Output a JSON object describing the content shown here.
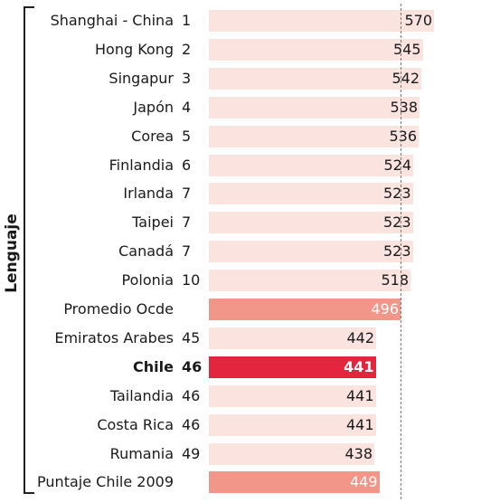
{
  "chart_data": {
    "type": "bar",
    "orientation": "horizontal",
    "title": "",
    "group_label": "Lenguaje",
    "categories": [
      {
        "name": "Shanghai - China",
        "rank": "1",
        "value": 570,
        "style": "light"
      },
      {
        "name": "Hong Kong",
        "rank": "2",
        "value": 545,
        "style": "light"
      },
      {
        "name": "Singapur",
        "rank": "3",
        "value": 542,
        "style": "light"
      },
      {
        "name": "Japón",
        "rank": "4",
        "value": 538,
        "style": "light"
      },
      {
        "name": "Corea",
        "rank": "5",
        "value": 536,
        "style": "light"
      },
      {
        "name": "Finlandia",
        "rank": "6",
        "value": 524,
        "style": "light"
      },
      {
        "name": "Irlanda",
        "rank": "7",
        "value": 523,
        "style": "light"
      },
      {
        "name": "Taipei",
        "rank": "7",
        "value": 523,
        "style": "light"
      },
      {
        "name": "Canadá",
        "rank": "7",
        "value": 523,
        "style": "light"
      },
      {
        "name": "Polonia",
        "rank": "10",
        "value": 518,
        "style": "light"
      },
      {
        "name": "Promedio Ocde",
        "rank": "",
        "value": 496,
        "style": "medium"
      },
      {
        "name": "Emiratos Arabes",
        "rank": "45",
        "value": 442,
        "style": "light"
      },
      {
        "name": "Chile",
        "rank": "46",
        "value": 441,
        "style": "highlight"
      },
      {
        "name": "Tailandia",
        "rank": "46",
        "value": 441,
        "style": "light"
      },
      {
        "name": "Costa Rica",
        "rank": "46",
        "value": 441,
        "style": "light"
      },
      {
        "name": "Rumania",
        "rank": "49",
        "value": 438,
        "style": "light"
      },
      {
        "name": "Puntaje Chile 2009",
        "rank": "",
        "value": 449,
        "style": "medium"
      }
    ],
    "reference_value": 496,
    "colors": {
      "light": "#fbe3e0",
      "medium": "#f3968a",
      "highlight": "#e3263d",
      "text_dark": "#1a1a1a",
      "text_light": "#ffffff"
    }
  }
}
